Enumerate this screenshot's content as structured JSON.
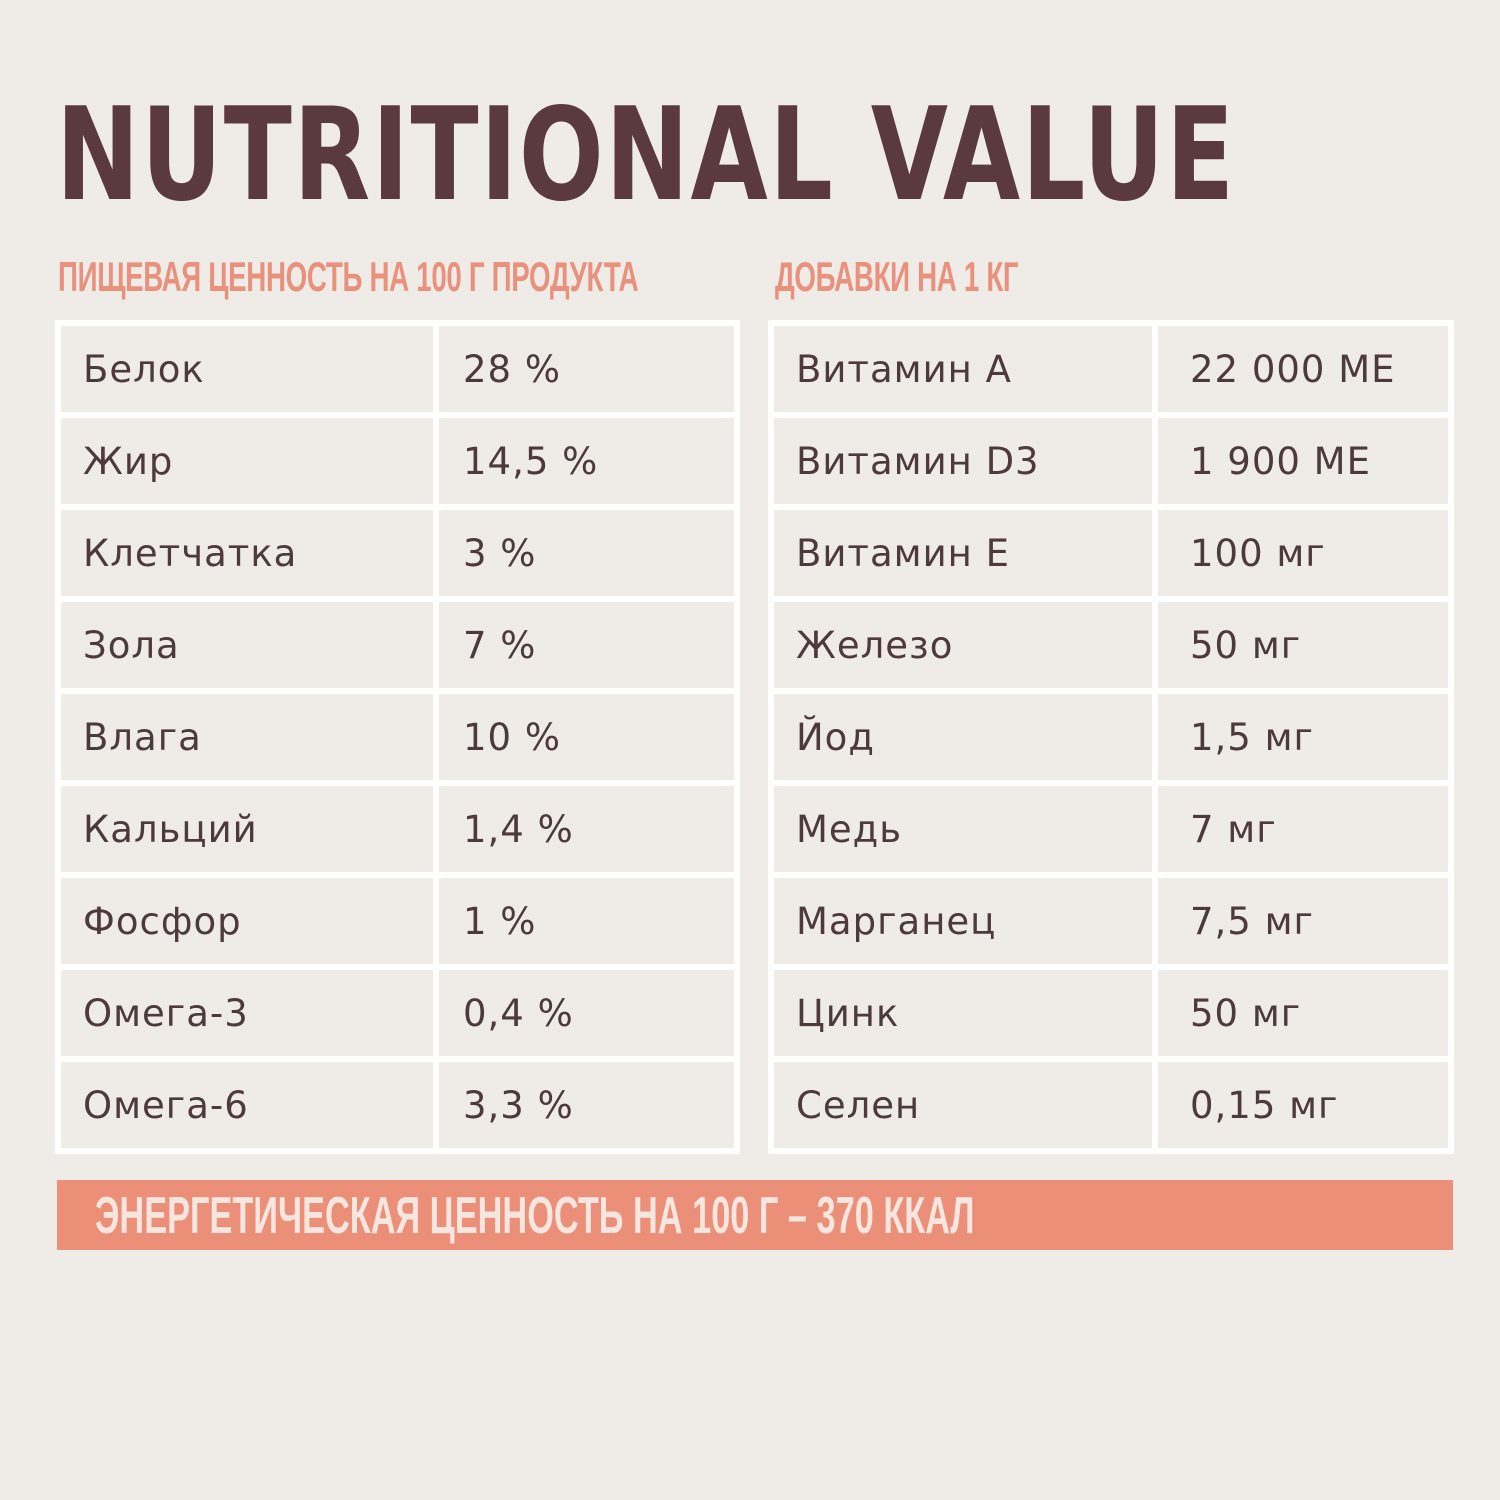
{
  "title": "NUTRITIONAL VALUE",
  "nutrition": {
    "heading": "ПИЩЕВАЯ ЦЕННОСТЬ НА 100 Г ПРОДУКТА",
    "rows": [
      {
        "name": "Белок",
        "value": "28 %"
      },
      {
        "name": "Жир",
        "value": "14,5 %"
      },
      {
        "name": "Клетчатка",
        "value": "3 %"
      },
      {
        "name": "Зола",
        "value": "7 %"
      },
      {
        "name": "Влага",
        "value": "10 %"
      },
      {
        "name": "Кальций",
        "value": "1,4 %"
      },
      {
        "name": "Фосфор",
        "value": "1 %"
      },
      {
        "name": "Омега-3",
        "value": "0,4 %"
      },
      {
        "name": "Омега-6",
        "value": "3,3 %"
      }
    ]
  },
  "additives": {
    "heading": "ДОБАВКИ НА 1 КГ",
    "rows": [
      {
        "name": "Витамин А",
        "value": "22 000 МЕ"
      },
      {
        "name": "Витамин D3",
        "value": "1 900 МЕ"
      },
      {
        "name": "Витамин Е",
        "value": "100 мг"
      },
      {
        "name": "Железо",
        "value": "50 мг"
      },
      {
        "name": "Йод",
        "value": "1,5 мг"
      },
      {
        "name": "Медь",
        "value": "7 мг"
      },
      {
        "name": "Марганец",
        "value": "7,5 мг"
      },
      {
        "name": "Цинк",
        "value": "50 мг"
      },
      {
        "name": "Селен",
        "value": "0,15 мг"
      }
    ]
  },
  "energy": "ЭНЕРГЕТИЧЕСКАЯ ЦЕННОСТЬ НА 100 Г – 370 ККАЛ",
  "colors": {
    "background": "#efebe6",
    "title": "#5b3a3f",
    "accent": "#eb8f78",
    "cell_text": "#4d3a3c",
    "grid_lines": "#ffffff"
  }
}
